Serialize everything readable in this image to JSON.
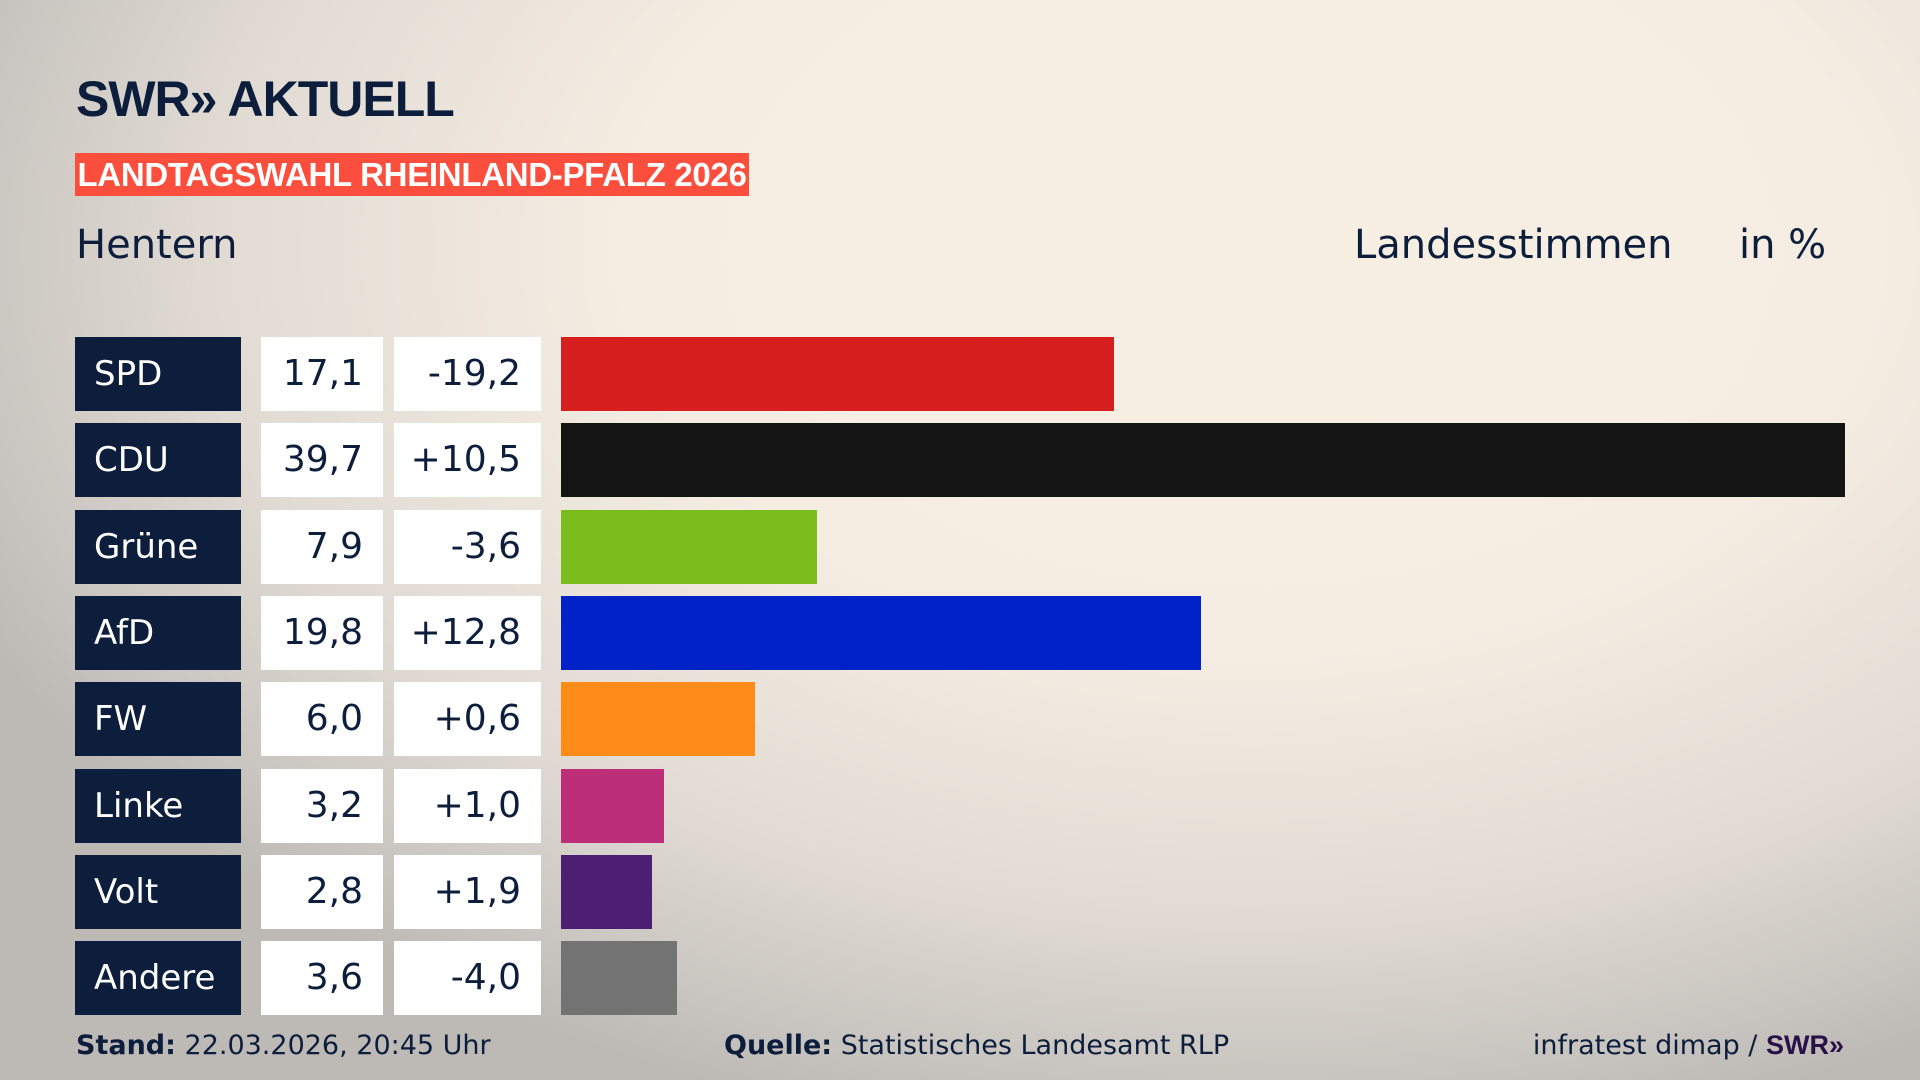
{
  "header": {
    "logo": "SWR» AKTUELL",
    "banner": "LANDTAGSWAHL RHEINLAND-PFALZ 2026",
    "place": "Hentern",
    "measure": "Landesstimmen",
    "unit": "in %"
  },
  "chart_data": {
    "type": "bar",
    "orientation": "horizontal",
    "title": "LANDTAGSWAHL RHEINLAND-PFALZ 2026",
    "subtitle": "Hentern",
    "ylabel": "Landesstimmen",
    "unit": "in %",
    "categories": [
      "SPD",
      "CDU",
      "Grüne",
      "AfD",
      "FW",
      "Linke",
      "Volt",
      "Andere"
    ],
    "values": [
      17.1,
      39.7,
      7.9,
      19.8,
      6.0,
      3.2,
      2.8,
      3.6
    ],
    "value_labels": [
      "17,1",
      "39,7",
      "7,9",
      "19,8",
      "6,0",
      "3,2",
      "2,8",
      "3,6"
    ],
    "changes": [
      -19.2,
      10.5,
      -3.6,
      12.8,
      0.6,
      1.0,
      1.9,
      -4.0
    ],
    "change_labels": [
      "-19,2",
      "+10,5",
      "-3,6",
      "+12,8",
      "+0,6",
      "+1,0",
      "+1,9",
      "-4,0"
    ],
    "colors": [
      "#d81f1f",
      "#141414",
      "#7bbd1c",
      "#0022c8",
      "#ff8c18",
      "#bd2e78",
      "#4d1f72",
      "#737373"
    ],
    "grid": false
  },
  "footer": {
    "stand_label": "Stand:",
    "stand_value": "22.03.2026, 20:45 Uhr",
    "source_label": "Quelle:",
    "source_value": "Statistisches Landesamt RLP",
    "credit": "infratest dimap / ",
    "credit_logo": "SWR»"
  }
}
